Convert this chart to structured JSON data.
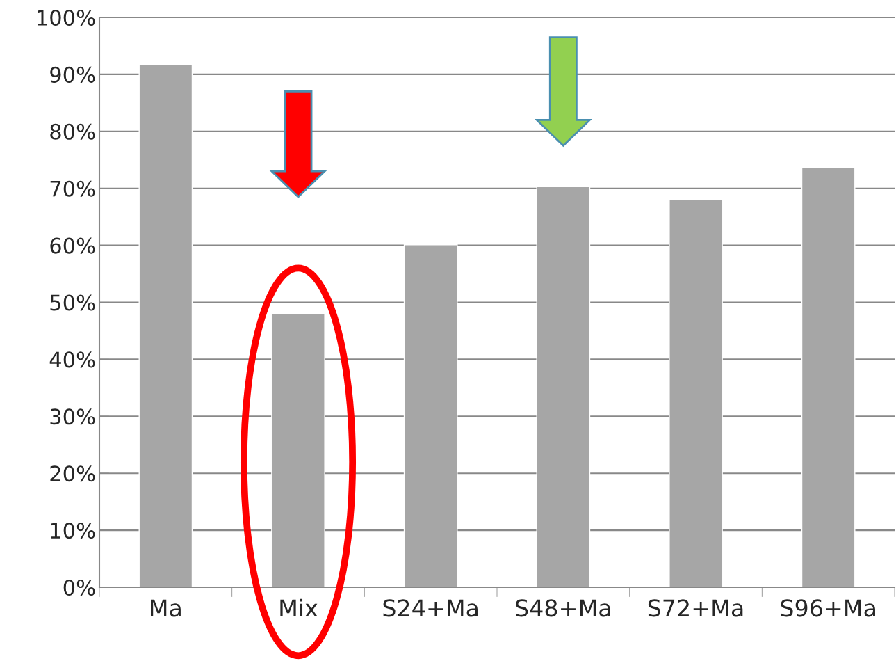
{
  "chart_data": {
    "type": "bar",
    "categories": [
      "Ma",
      "Mix",
      "S24+Ma",
      "S48+Ma",
      "S72+Ma",
      "S96+Ma"
    ],
    "values": [
      91.7,
      48.0,
      60.1,
      70.3,
      68.0,
      73.7
    ],
    "color": "#a6a6a6",
    "ylim": [
      0,
      100
    ],
    "yticks": [
      {
        "value": 0,
        "label": "0%"
      },
      {
        "value": 10,
        "label": "10%"
      },
      {
        "value": 20,
        "label": "20%"
      },
      {
        "value": 30,
        "label": "30%"
      },
      {
        "value": 40,
        "label": "40%"
      },
      {
        "value": 50,
        "label": "50%"
      },
      {
        "value": 60,
        "label": "60%"
      },
      {
        "value": 70,
        "label": "70%"
      },
      {
        "value": 80,
        "label": "80%"
      },
      {
        "value": 90,
        "label": "90%"
      },
      {
        "value": 100,
        "label": "100%"
      }
    ],
    "grid": "y"
  }
}
